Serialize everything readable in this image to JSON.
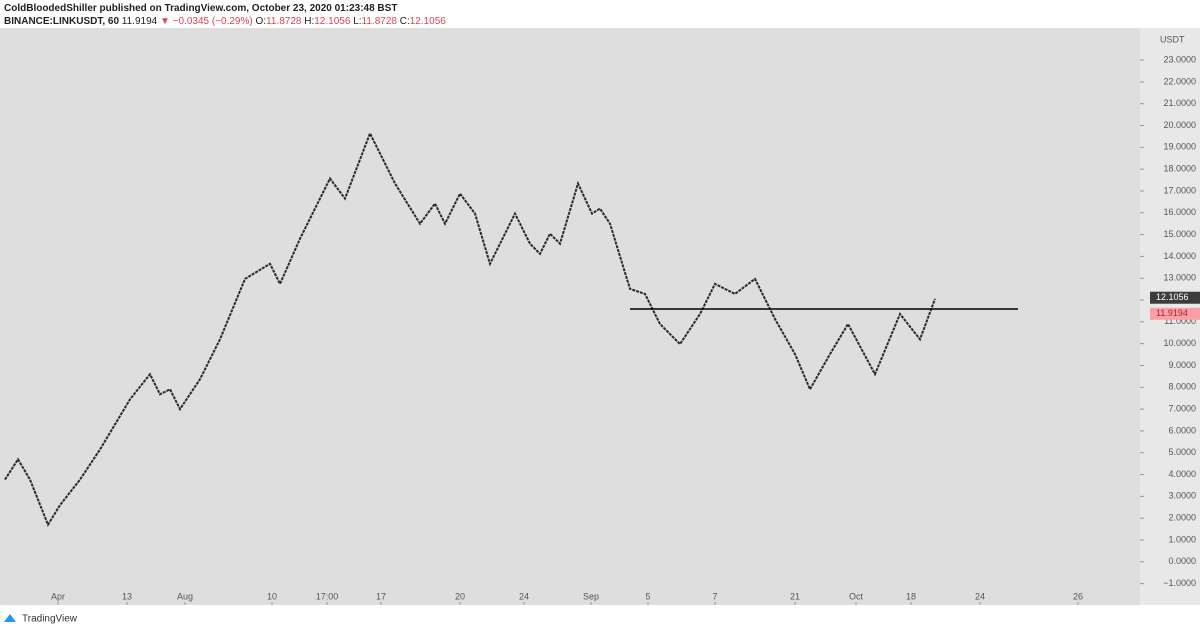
{
  "header": {
    "publisher": "ColdBloodedShiller published on TradingView.com, October 23, 2020 01:23:48 BST",
    "symbol": "BINANCE:LINKUSDT, 60",
    "last": "11.9194",
    "change": "▼ −0.0345 (−0.29%)",
    "ohlc": [
      {
        "label": "O:",
        "value": "11.8728"
      },
      {
        "label": "H:",
        "value": "12.1056"
      },
      {
        "label": "L:",
        "value": "11.8728"
      },
      {
        "label": "C:",
        "value": "12.1056"
      }
    ]
  },
  "footer": {
    "brand": "TradingView"
  },
  "chart_data": {
    "type": "line",
    "unit": "USDT",
    "grid": false,
    "x": [
      1.25,
      4.5,
      7.5,
      12,
      15,
      20,
      25,
      32.5,
      37.5,
      40,
      42.5,
      45,
      50,
      55,
      61.25,
      67.5,
      70,
      75,
      82.5,
      86.25,
      92.5,
      98.75,
      105,
      108.75,
      111.25,
      115,
      118.75,
      122.5,
      128.75,
      132.5,
      135,
      137.5,
      140,
      144.5,
      148,
      150,
      152.5,
      157.5,
      161.25,
      165,
      170,
      175,
      178.75,
      183.75,
      188.75,
      193.75,
      198.75,
      202.5,
      207.5,
      212,
      218.75,
      225,
      230,
      233.75
    ],
    "series": [
      {
        "color": "#2a2a2a",
        "values": [
          3.77,
          4.7,
          3.77,
          1.7,
          2.6,
          3.77,
          5.15,
          7.45,
          8.6,
          7.68,
          7.91,
          7.0,
          8.37,
          10.2,
          12.97,
          13.66,
          12.74,
          14.81,
          17.57,
          16.65,
          19.64,
          17.34,
          15.5,
          16.42,
          15.5,
          16.88,
          15.96,
          13.66,
          15.96,
          14.58,
          14.12,
          15.04,
          14.58,
          17.34,
          15.96,
          16.19,
          15.5,
          12.51,
          12.28,
          10.9,
          9.98,
          11.36,
          12.74,
          12.28,
          12.97,
          11.13,
          9.52,
          7.91,
          9.52,
          10.9,
          8.6,
          11.36,
          10.2,
          12.05
        ]
      }
    ],
    "hline": {
      "value": 11.59,
      "x": [
        157.5,
        254.5
      ],
      "color": "#000000"
    },
    "price_tags": [
      {
        "value": 12.1056,
        "color": "#3c3c3c"
      },
      {
        "value": 11.9194,
        "color": "#f7a1a6"
      }
    ],
    "xlim": [
      0,
      285
    ],
    "ylim": [
      -1.98,
      24.47
    ],
    "xticks": [
      {
        "value": 14.5,
        "label": "Apr"
      },
      {
        "value": 31.75,
        "label": "13"
      },
      {
        "value": 46.25,
        "label": "Aug"
      },
      {
        "value": 68,
        "label": "10"
      },
      {
        "value": 81.75,
        "label": "17:00"
      },
      {
        "value": 95.25,
        "label": "17"
      },
      {
        "value": 115,
        "label": "20"
      },
      {
        "value": 131,
        "label": "24"
      },
      {
        "value": 147.75,
        "label": "Sep"
      },
      {
        "value": 162,
        "label": "5"
      },
      {
        "value": 178.75,
        "label": "7"
      },
      {
        "value": 198.75,
        "label": "21"
      },
      {
        "value": 214,
        "label": "Oct"
      },
      {
        "value": 227.75,
        "label": "18"
      },
      {
        "value": 245,
        "label": "24"
      },
      {
        "value": 269.5,
        "label": "26"
      }
    ],
    "yticks": [
      {
        "value": -1,
        "label": "−1.0000"
      },
      {
        "value": 0,
        "label": "0.0000"
      },
      {
        "value": 1,
        "label": "1.0000"
      },
      {
        "value": 2,
        "label": "2.0000"
      },
      {
        "value": 3,
        "label": "3.0000"
      },
      {
        "value": 4,
        "label": "4.0000"
      },
      {
        "value": 5,
        "label": "5.0000"
      },
      {
        "value": 6,
        "label": "6.0000"
      },
      {
        "value": 7,
        "label": "7.0000"
      },
      {
        "value": 8,
        "label": "8.0000"
      },
      {
        "value": 9,
        "label": "9.0000"
      },
      {
        "value": 10,
        "label": "10.0000"
      },
      {
        "value": 11,
        "label": "11.0000"
      },
      {
        "value": 12,
        "label": "12.0000"
      },
      {
        "value": 13,
        "label": "13.0000"
      },
      {
        "value": 14,
        "label": "14.0000"
      },
      {
        "value": 15,
        "label": "15.0000"
      },
      {
        "value": 16,
        "label": "16.0000"
      },
      {
        "value": 17,
        "label": "17.0000"
      },
      {
        "value": 18,
        "label": "18.0000"
      },
      {
        "value": 19,
        "label": "19.0000"
      },
      {
        "value": 20,
        "label": "20.0000"
      },
      {
        "value": 21,
        "label": "21.0000"
      },
      {
        "value": 22,
        "label": "22.0000"
      },
      {
        "value": 23,
        "label": "23.0000"
      }
    ]
  }
}
